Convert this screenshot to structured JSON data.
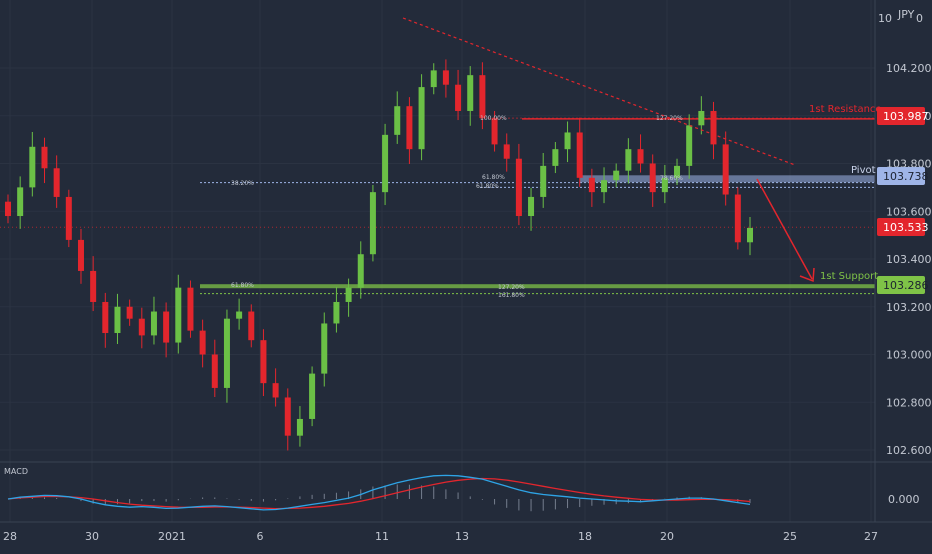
{
  "symbol_label": "JPY",
  "currency_unit": "0",
  "price_axis": {
    "ticks": [
      "104.200",
      "104.000",
      "103.800",
      "103.600",
      "103.400",
      "103.200",
      "103.000",
      "102.800",
      "102.600"
    ]
  },
  "time_axis": {
    "labels": [
      "28",
      "30",
      "2021",
      "6",
      "11",
      "13",
      "18",
      "20",
      "25",
      "27"
    ]
  },
  "levels": {
    "resistance": {
      "label": "1st Resistance",
      "price": 103.987,
      "price_label": "103.987",
      "color": "#e3262d"
    },
    "pivot": {
      "label": "Pivot",
      "price": 103.738,
      "price_label": "103.738",
      "color": "#9fb5e8"
    },
    "support": {
      "label": "1st Support",
      "price": 103.286,
      "price_label": "103.286",
      "color": "#7fc347"
    },
    "last": {
      "price": 103.533,
      "price_label": "103.533",
      "color": "#e3262d"
    }
  },
  "fib_labels": {
    "r_100": "100.00%",
    "r_127": "127.20%",
    "p_382": "38.20%",
    "p_618": "61.80%",
    "p_618b": "61.80%",
    "p_786": "78.60%",
    "s_618": "61.80%",
    "s_127": "127.20%",
    "s_1618": "161.80%"
  },
  "macd": {
    "label": "MACD",
    "tick": "0.000"
  },
  "colors": {
    "background": "#232b3a",
    "bull": "#6bc046",
    "bear": "#e3262d",
    "macd_line": "#2ea4e6",
    "signal_line": "#e3262d",
    "axis_text": "#c3c8d2"
  },
  "chart_data": {
    "type": "candlestick",
    "symbol": "JPY",
    "y_range": [
      102.55,
      104.37
    ],
    "x_labels": [
      "28",
      "30",
      "2021",
      "6",
      "11",
      "13",
      "18",
      "20",
      "25",
      "27"
    ],
    "key_levels": [
      {
        "name": "1st Resistance",
        "value": 103.987
      },
      {
        "name": "Pivot",
        "value": 103.738
      },
      {
        "name": "1st Support",
        "value": 103.286
      },
      {
        "name": "Last price",
        "value": 103.533
      }
    ],
    "close_series": [
      103.58,
      103.7,
      103.87,
      103.78,
      103.66,
      103.48,
      103.35,
      103.22,
      103.09,
      103.2,
      103.15,
      103.08,
      103.18,
      103.05,
      103.28,
      103.1,
      103.0,
      102.86,
      103.15,
      103.18,
      103.06,
      102.88,
      102.82,
      102.66,
      102.73,
      102.92,
      103.13,
      103.22,
      103.28,
      103.42,
      103.68,
      103.92,
      104.04,
      103.86,
      104.12,
      104.19,
      104.13,
      104.02,
      104.17,
      103.99,
      103.88,
      103.82,
      103.58,
      103.66,
      103.79,
      103.86,
      103.93,
      103.74,
      103.68,
      103.73,
      103.77,
      103.86,
      103.8,
      103.68,
      103.74,
      103.79,
      103.96,
      104.02,
      103.88,
      103.67,
      103.47,
      103.53
    ],
    "macd": [
      0.0,
      0.01,
      0.015,
      0.02,
      0.018,
      0.012,
      0.0,
      -0.018,
      -0.032,
      -0.04,
      -0.045,
      -0.042,
      -0.046,
      -0.052,
      -0.05,
      -0.045,
      -0.04,
      -0.038,
      -0.042,
      -0.048,
      -0.054,
      -0.06,
      -0.058,
      -0.05,
      -0.04,
      -0.03,
      -0.02,
      -0.008,
      0.005,
      0.025,
      0.05,
      0.07,
      0.09,
      0.105,
      0.118,
      0.128,
      0.13,
      0.128,
      0.12,
      0.11,
      0.09,
      0.07,
      0.05,
      0.035,
      0.025,
      0.018,
      0.012,
      0.005,
      0.0,
      -0.005,
      -0.01,
      -0.012,
      -0.015,
      -0.01,
      -0.005,
      0.0,
      0.005,
      0.005,
      0.0,
      -0.01,
      -0.02,
      -0.03
    ],
    "signal": [
      0.0,
      0.006,
      0.01,
      0.014,
      0.014,
      0.012,
      0.008,
      0.0,
      -0.01,
      -0.02,
      -0.028,
      -0.034,
      -0.038,
      -0.042,
      -0.045,
      -0.046,
      -0.046,
      -0.044,
      -0.044,
      -0.045,
      -0.047,
      -0.05,
      -0.053,
      -0.052,
      -0.05,
      -0.046,
      -0.04,
      -0.032,
      -0.024,
      -0.012,
      0.002,
      0.018,
      0.034,
      0.05,
      0.066,
      0.08,
      0.093,
      0.103,
      0.11,
      0.113,
      0.111,
      0.104,
      0.094,
      0.082,
      0.07,
      0.058,
      0.047,
      0.036,
      0.026,
      0.017,
      0.01,
      0.004,
      -0.002,
      -0.005,
      -0.006,
      -0.006,
      -0.004,
      -0.002,
      -0.002,
      -0.004,
      -0.008,
      -0.014
    ],
    "macd_y_range": [
      -0.08,
      0.16
    ]
  }
}
